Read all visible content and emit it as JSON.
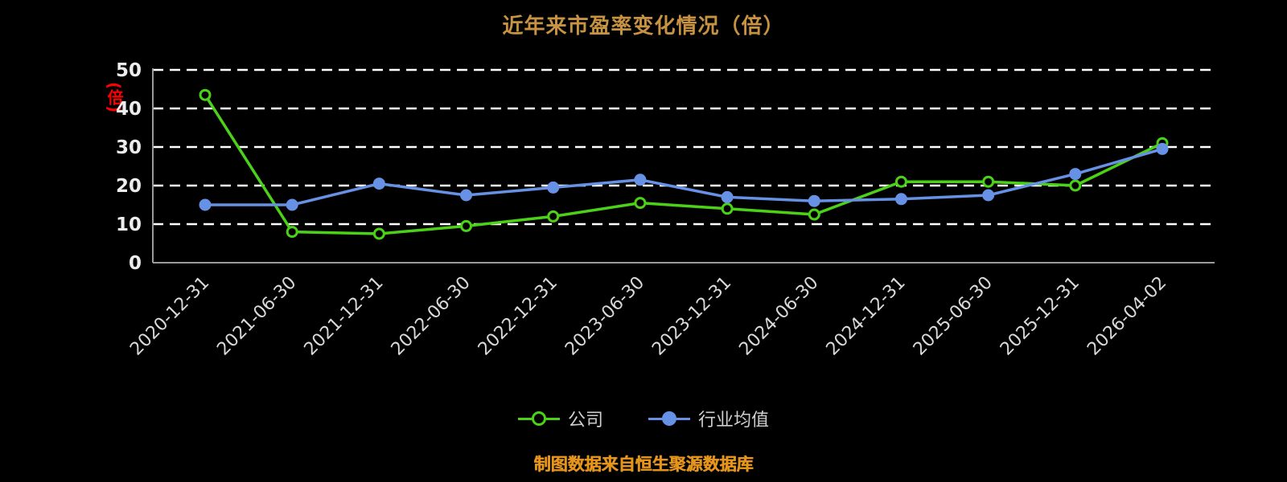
{
  "chart_data": {
    "type": "line",
    "title": "近年来市盈率变化情况（倍）",
    "ylabel": "(倍)",
    "xlabel": "",
    "ylim": [
      0,
      50
    ],
    "yticks": [
      0,
      10,
      20,
      30,
      40,
      50
    ],
    "grid": "dashed-horizontal",
    "legend_position": "bottom",
    "categories": [
      "2020-12-31",
      "2021-06-30",
      "2021-12-31",
      "2022-06-30",
      "2022-12-31",
      "2023-06-30",
      "2023-12-31",
      "2024-06-30",
      "2024-12-31",
      "2025-06-30",
      "2025-12-31",
      "2026-04-02"
    ],
    "series": [
      {
        "name": "公司",
        "color": "#4bd117",
        "marker_fill": "#000000",
        "values": [
          43.5,
          8,
          7.5,
          9.5,
          12,
          15.5,
          14,
          12.5,
          21,
          21,
          20,
          31
        ]
      },
      {
        "name": "行业均值",
        "color": "#6691e4",
        "marker_fill": "#6691e4",
        "values": [
          15,
          15,
          20.5,
          17.5,
          19.5,
          21.5,
          17,
          16,
          16.5,
          17.5,
          23,
          29.5
        ]
      }
    ]
  },
  "footer": {
    "source_note": "制图数据来自恒生聚源数据库"
  },
  "colors": {
    "background": "#000000",
    "title": "#c79342",
    "axis": "#9a9a9a",
    "gridline": "#ffffff",
    "tick_label": "#ededed",
    "x_label": "#d9d9d9",
    "y_unit_label": "#ff0000",
    "footer": "#e5941c"
  }
}
